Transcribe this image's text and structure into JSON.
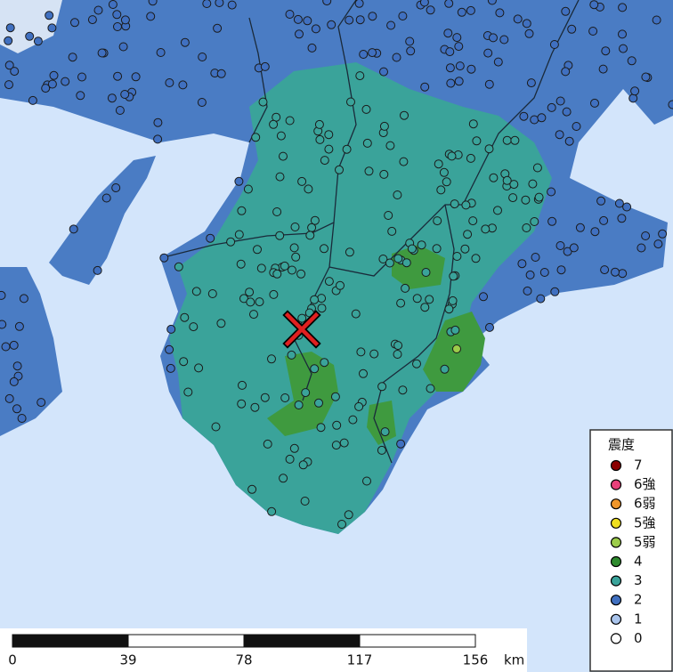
{
  "legend": {
    "title": "震度",
    "items": [
      {
        "label": "7",
        "color": "#8b0000"
      },
      {
        "label": "6強",
        "color": "#e8407a"
      },
      {
        "label": "6弱",
        "color": "#f0962a"
      },
      {
        "label": "5強",
        "color": "#f0e020"
      },
      {
        "label": "5弱",
        "color": "#9ccc4a"
      },
      {
        "label": "4",
        "color": "#2e8b2e"
      },
      {
        "label": "3",
        "color": "#3aa39a"
      },
      {
        "label": "2",
        "color": "#4070c0"
      },
      {
        "label": "1",
        "color": "#a9c4ec"
      },
      {
        "label": "0",
        "color": "#ffffff"
      }
    ]
  },
  "scale": {
    "ticks": [
      "0",
      "39",
      "78",
      "117",
      "156"
    ],
    "unit": "km"
  }
}
